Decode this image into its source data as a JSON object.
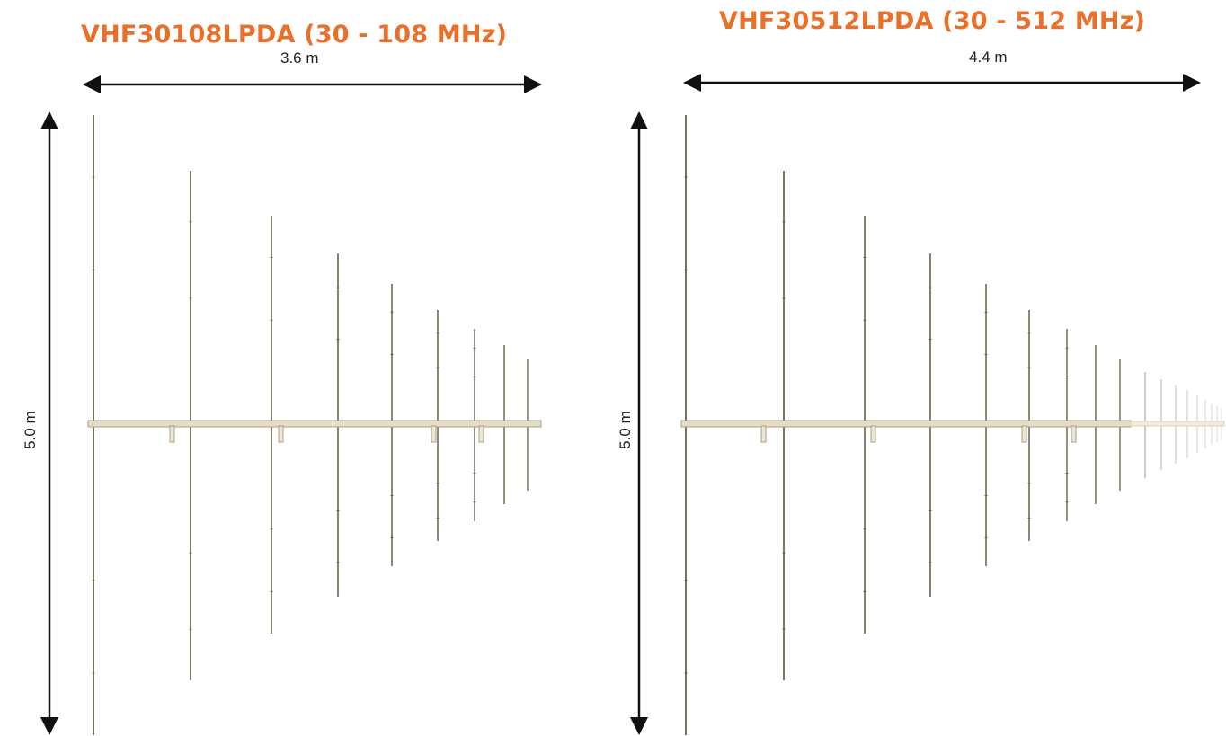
{
  "colors": {
    "title": "#e8702a",
    "arrow": "#111111",
    "element": "#6b6046",
    "boom": "#d9d2bc",
    "boom_edge": "#a89f82"
  },
  "panels": [
    {
      "title": "VHF30108LPDA (30 - 108 MHz)",
      "width_label": "3.6 m",
      "height_label": "5.0 m"
    },
    {
      "title": "VHF30512LPDA (30 - 512 MHz)",
      "width_label": "4.4 m",
      "height_label": "5.0 m"
    }
  ]
}
